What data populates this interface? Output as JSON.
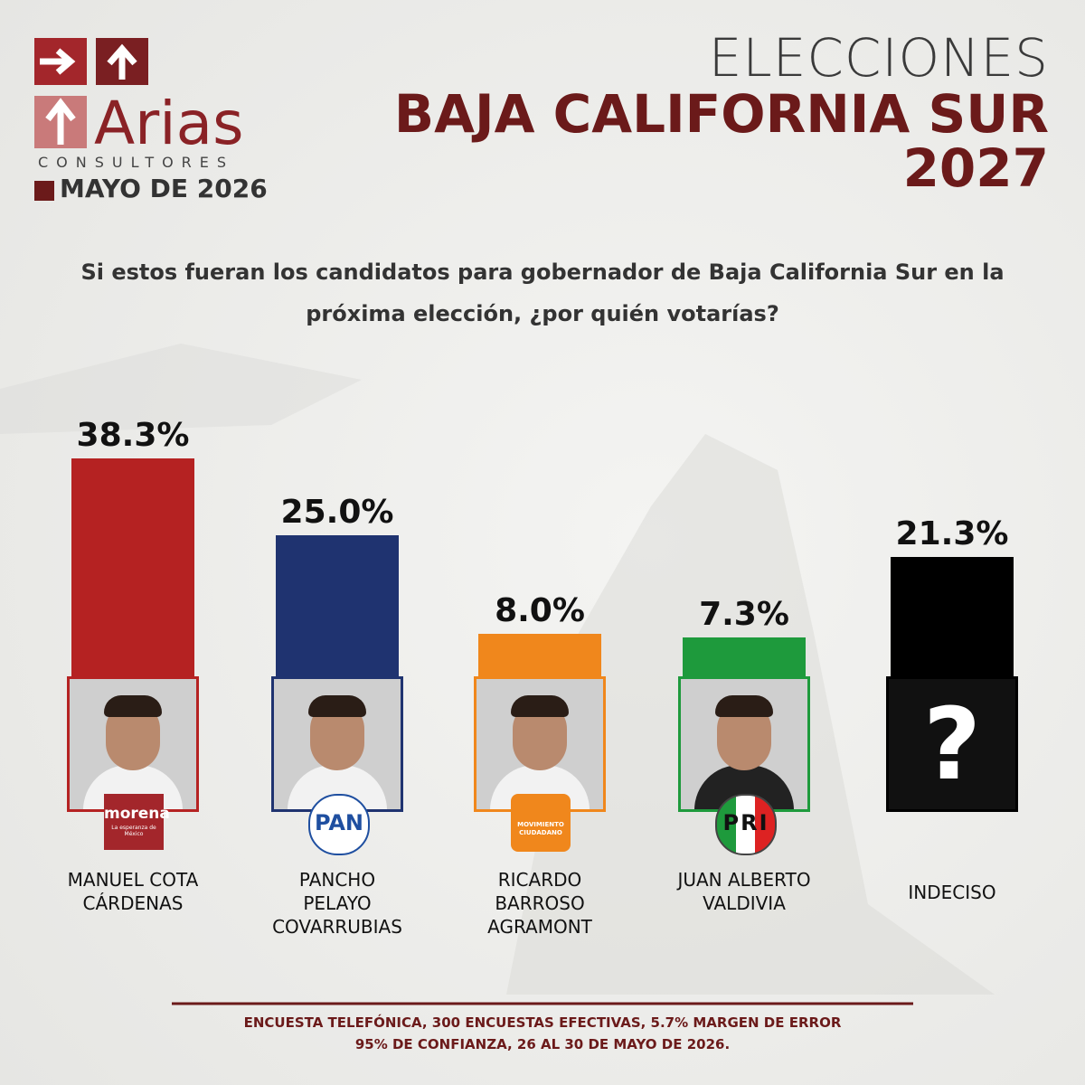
{
  "header": {
    "brand": "Arias",
    "brand_sub": "CONSULTORES",
    "date": "MAYO DE 2026",
    "title_line1": "ELECCIONES",
    "title_line2": "BAJA CALIFORNIA SUR",
    "title_line3": "2027"
  },
  "chart_data": {
    "type": "bar",
    "subtitle": "Si estos fueran los candidatos para gobernador de Baja California Sur en la próxima elección, ¿por quién votarías?",
    "categories": [
      "MANUEL COTA CÁRDENAS",
      "PANCHO PELAYO COVARRUBIAS",
      "RICARDO BARROSO AGRAMONT",
      "JUAN ALBERTO VALDIVIA",
      "INDECISO"
    ],
    "values": [
      38.3,
      25.0,
      8.0,
      7.3,
      21.3
    ],
    "value_labels": [
      "38.3%",
      "25.0%",
      "8.0%",
      "7.3%",
      "21.3%"
    ],
    "colors": [
      "#b52222",
      "#1f3370",
      "#f0871c",
      "#1e9a3c",
      "#000000"
    ],
    "party_logos": [
      "morena",
      "PAN",
      "MOVIMIENTO CIUDADANO",
      "PRI"
    ],
    "morena_slogan": "La esperanza de México",
    "undecided_mark": "?"
  },
  "footer": {
    "note_line1": "ENCUESTA TELEFÓNICA, 300 ENCUESTAS EFECTIVAS, 5.7%  MARGEN DE ERROR",
    "note_line2": "95% DE CONFIANZA, 26 AL 30 DE MAYO DE 2026."
  }
}
